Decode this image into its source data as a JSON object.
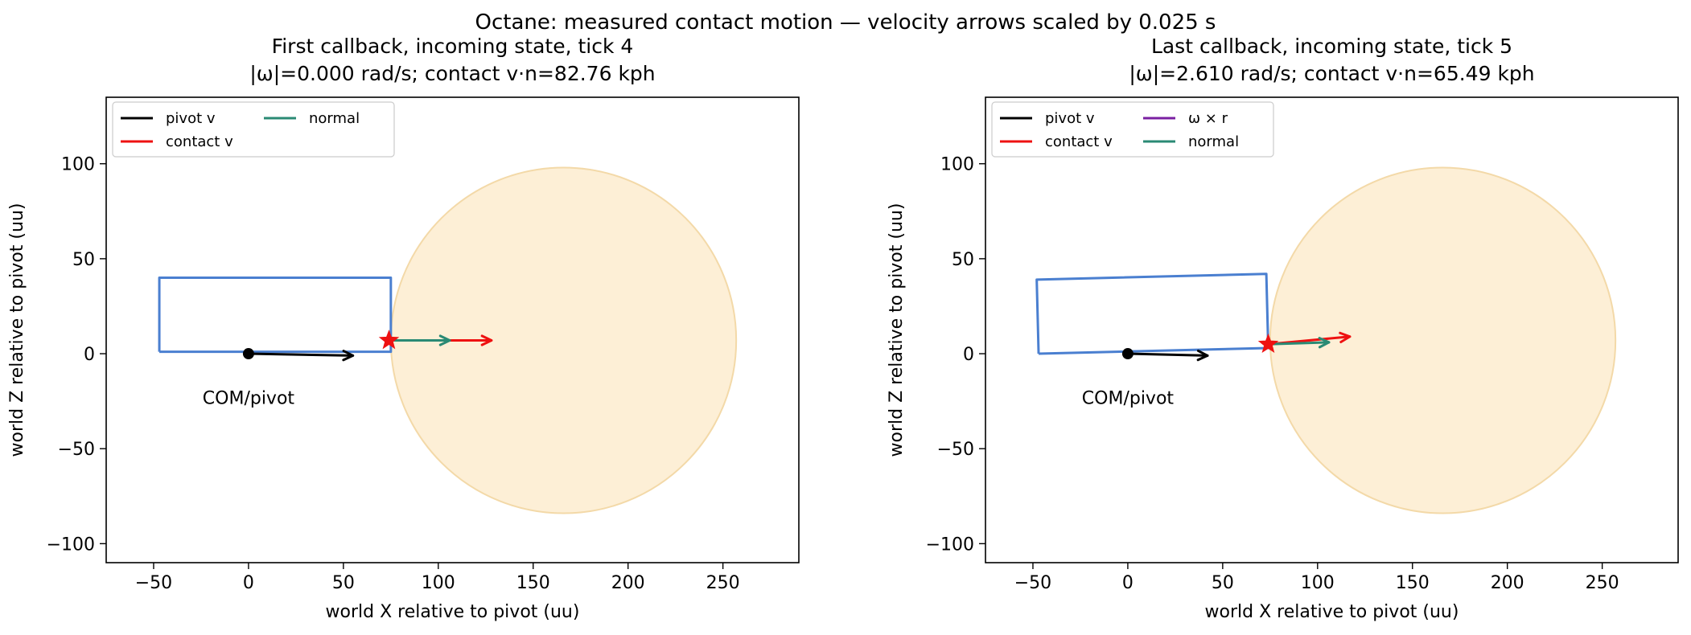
{
  "figure": {
    "suptitle": "Octane: measured contact motion — velocity arrows scaled by 0.025 s"
  },
  "colors": {
    "body_outline": "#4a7fd0",
    "ball_fill": "#fdefd6",
    "ball_edge": "#f3d9a8",
    "pivot_v": "#000000",
    "contact_v": "#ee1111",
    "omega_r": "#7a1fa2",
    "normal": "#2a8a74",
    "contact_marker": "#ee1111"
  },
  "chart_data": [
    {
      "type": "scatter",
      "title": "First callback, incoming state, tick 4",
      "subtitle": "|ω|=0.000 rad/s; contact v·n=82.76 kph",
      "xlabel": "world X relative to pivot (uu)",
      "ylabel": "world Z relative to pivot (uu)",
      "xlim": [
        -75,
        290
      ],
      "ylim": [
        -110,
        135
      ],
      "xticks": [
        -50,
        0,
        50,
        100,
        150,
        200,
        250
      ],
      "xtick_labels": [
        "−50",
        "0",
        "50",
        "100",
        "150",
        "200",
        "250"
      ],
      "yticks": [
        -100,
        -50,
        0,
        50,
        100
      ],
      "ytick_labels": [
        "−100",
        "−50",
        "0",
        "50",
        "100"
      ],
      "grid": false,
      "legend": {
        "position": "top-left",
        "entries": [
          "pivot v",
          "contact v",
          "normal"
        ]
      },
      "body_outline": [
        [
          -47,
          1
        ],
        [
          -47,
          40
        ],
        [
          75,
          40
        ],
        [
          75,
          1
        ],
        [
          -47,
          1
        ]
      ],
      "ball": {
        "center": [
          166,
          7
        ],
        "radius": 91
      },
      "pivot": [
        0,
        0
      ],
      "pivot_label": {
        "text": "COM/pivot",
        "at": [
          0,
          -23
        ]
      },
      "contact_point": [
        74,
        7
      ],
      "arrows": [
        {
          "name": "pivot v",
          "from": [
            0,
            0
          ],
          "to": [
            55,
            -1
          ]
        },
        {
          "name": "contact v",
          "from": [
            74,
            7
          ],
          "to": [
            128,
            7
          ]
        },
        {
          "name": "normal",
          "from": [
            74,
            7
          ],
          "to": [
            106,
            7
          ]
        }
      ]
    },
    {
      "type": "scatter",
      "title": "Last callback, incoming state, tick 5",
      "subtitle": "|ω|=2.610 rad/s; contact v·n=65.49 kph",
      "xlabel": "world X relative to pivot (uu)",
      "ylabel": "world Z relative to pivot (uu)",
      "xlim": [
        -75,
        290
      ],
      "ylim": [
        -110,
        135
      ],
      "xticks": [
        -50,
        0,
        50,
        100,
        150,
        200,
        250
      ],
      "xtick_labels": [
        "−50",
        "0",
        "50",
        "100",
        "150",
        "200",
        "250"
      ],
      "yticks": [
        -100,
        -50,
        0,
        50,
        100
      ],
      "ytick_labels": [
        "−100",
        "−50",
        "0",
        "50",
        "100"
      ],
      "grid": false,
      "legend": {
        "position": "top-left",
        "entries": [
          "pivot v",
          "contact v",
          "ω × r",
          "normal"
        ]
      },
      "body_outline": [
        [
          -47,
          0
        ],
        [
          -48,
          39
        ],
        [
          73,
          42
        ],
        [
          74,
          3
        ],
        [
          -47,
          0
        ]
      ],
      "ball": {
        "center": [
          166,
          7
        ],
        "radius": 91
      },
      "pivot": [
        0,
        0
      ],
      "pivot_label": {
        "text": "COM/pivot",
        "at": [
          0,
          -23
        ]
      },
      "contact_point": [
        74,
        5
      ],
      "arrows": [
        {
          "name": "pivot v",
          "from": [
            0,
            0
          ],
          "to": [
            42,
            -1
          ]
        },
        {
          "name": "contact v",
          "from": [
            74,
            5
          ],
          "to": [
            117,
            9
          ]
        },
        {
          "name": "ω × r",
          "from": [
            74,
            5
          ],
          "to": [
            74,
            5
          ]
        },
        {
          "name": "normal",
          "from": [
            74,
            5
          ],
          "to": [
            106,
            6
          ]
        }
      ]
    }
  ]
}
